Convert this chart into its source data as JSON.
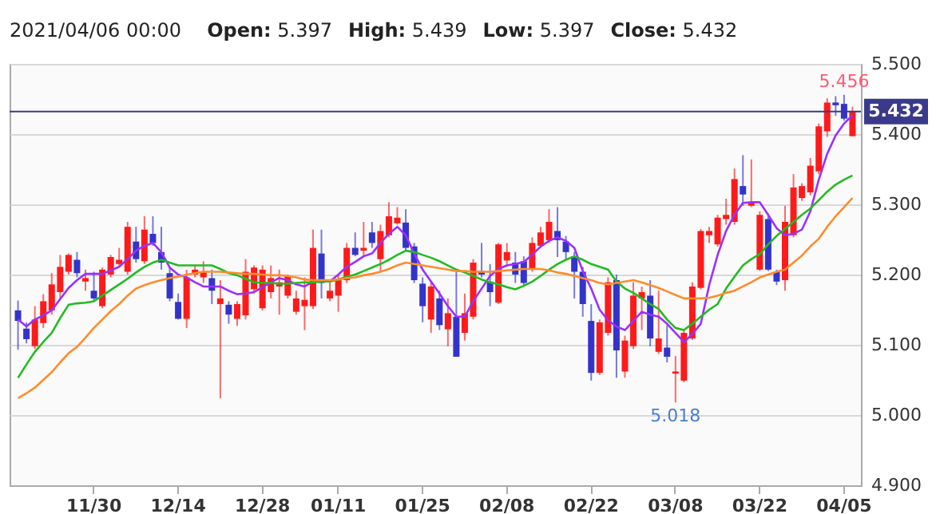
{
  "chart_data": {
    "type": "candlestick",
    "title": "2021/04/06 00:00",
    "annotations": [
      "Open: 5.397",
      "High: 5.439",
      "Low: 5.397",
      "Close: 5.432",
      {
        "text": "5.456",
        "x": "04/05",
        "y": 5.456
      },
      {
        "text": "5.018",
        "x": "03/08",
        "y": 5.018
      }
    ],
    "categories": [
      null,
      null,
      null,
      null,
      null,
      null,
      null,
      null,
      null,
      "11/30",
      null,
      null,
      null,
      null,
      null,
      null,
      null,
      null,
      null,
      "12/14",
      null,
      null,
      null,
      null,
      null,
      null,
      null,
      null,
      null,
      "12/28",
      null,
      null,
      null,
      null,
      null,
      null,
      null,
      null,
      "01/11",
      null,
      null,
      null,
      null,
      null,
      null,
      null,
      null,
      null,
      "01/25",
      null,
      null,
      null,
      null,
      null,
      null,
      null,
      null,
      null,
      "02/08",
      null,
      null,
      null,
      null,
      null,
      null,
      null,
      null,
      null,
      "02/22",
      null,
      null,
      null,
      null,
      null,
      null,
      null,
      null,
      null,
      "03/08",
      null,
      null,
      null,
      null,
      null,
      null,
      null,
      null,
      null,
      "03/22",
      null,
      null,
      null,
      null,
      null,
      null,
      null,
      null,
      null,
      "04/05",
      null
    ],
    "ohlc": [
      [
        5.149,
        5.163,
        5.093,
        5.134
      ],
      [
        5.123,
        5.132,
        5.102,
        5.108
      ],
      [
        5.098,
        5.155,
        5.094,
        5.136
      ],
      [
        5.131,
        5.172,
        5.124,
        5.162
      ],
      [
        5.149,
        5.202,
        5.143,
        5.186
      ],
      [
        5.175,
        5.228,
        5.166,
        5.211
      ],
      [
        5.204,
        5.23,
        5.2,
        5.228
      ],
      [
        5.221,
        5.232,
        5.196,
        5.202
      ],
      [
        5.19,
        5.207,
        5.177,
        5.195
      ],
      [
        5.177,
        5.204,
        5.162,
        5.166
      ],
      [
        5.155,
        5.21,
        5.152,
        5.207
      ],
      [
        5.2,
        5.228,
        5.196,
        5.225
      ],
      [
        5.215,
        5.238,
        5.213,
        5.221
      ],
      [
        5.204,
        5.275,
        5.2,
        5.268
      ],
      [
        5.247,
        5.268,
        5.217,
        5.222
      ],
      [
        5.219,
        5.283,
        5.215,
        5.264
      ],
      [
        5.258,
        5.283,
        5.241,
        5.245
      ],
      [
        5.232,
        5.268,
        5.207,
        5.217
      ],
      [
        5.202,
        5.211,
        5.162,
        5.166
      ],
      [
        5.161,
        5.173,
        5.136,
        5.137
      ],
      [
        5.137,
        5.207,
        5.124,
        5.196
      ],
      [
        5.2,
        5.213,
        5.196,
        5.207
      ],
      [
        5.196,
        5.219,
        5.188,
        5.204
      ],
      [
        5.195,
        5.207,
        5.158,
        5.177
      ],
      [
        5.158,
        5.192,
        5.024,
        5.166
      ],
      [
        5.157,
        5.162,
        5.13,
        5.143
      ],
      [
        5.137,
        5.162,
        5.127,
        5.158
      ],
      [
        5.142,
        5.222,
        5.136,
        5.204
      ],
      [
        5.179,
        5.213,
        5.173,
        5.21
      ],
      [
        5.152,
        5.213,
        5.149,
        5.207
      ],
      [
        5.175,
        5.213,
        5.166,
        5.195
      ],
      [
        5.183,
        5.207,
        5.143,
        5.189
      ],
      [
        5.17,
        5.2,
        5.166,
        5.198
      ],
      [
        5.147,
        5.177,
        5.143,
        5.166
      ],
      [
        5.155,
        5.196,
        5.121,
        5.164
      ],
      [
        5.155,
        5.264,
        5.151,
        5.238
      ],
      [
        5.23,
        5.264,
        5.166,
        5.188
      ],
      [
        5.166,
        5.192,
        5.162,
        5.177
      ],
      [
        5.17,
        5.2,
        5.147,
        5.192
      ],
      [
        5.192,
        5.245,
        5.188,
        5.238
      ],
      [
        5.238,
        5.26,
        5.226,
        5.228
      ],
      [
        5.234,
        5.275,
        5.226,
        5.238
      ],
      [
        5.26,
        5.275,
        5.238,
        5.245
      ],
      [
        5.222,
        5.271,
        5.204,
        5.262
      ],
      [
        5.256,
        5.303,
        5.253,
        5.283
      ],
      [
        5.273,
        5.296,
        5.271,
        5.281
      ],
      [
        5.274,
        5.293,
        5.234,
        5.238
      ],
      [
        5.24,
        5.245,
        5.188,
        5.192
      ],
      [
        5.187,
        5.196,
        5.132,
        5.155
      ],
      [
        5.136,
        5.19,
        5.117,
        5.183
      ],
      [
        5.166,
        5.177,
        5.121,
        5.128
      ],
      [
        5.122,
        5.166,
        5.098,
        5.145
      ],
      [
        5.14,
        5.204,
        5.083,
        5.083
      ],
      [
        5.117,
        5.173,
        5.106,
        5.145
      ],
      [
        5.14,
        5.222,
        5.136,
        5.217
      ],
      [
        5.205,
        5.245,
        5.196,
        5.2
      ],
      [
        5.19,
        5.215,
        5.155,
        5.175
      ],
      [
        5.16,
        5.245,
        5.158,
        5.243
      ],
      [
        5.22,
        5.245,
        5.211,
        5.232
      ],
      [
        5.217,
        5.232,
        5.188,
        5.2
      ],
      [
        5.219,
        5.226,
        5.185,
        5.188
      ],
      [
        5.207,
        5.253,
        5.204,
        5.245
      ],
      [
        5.241,
        5.268,
        5.238,
        5.26
      ],
      [
        5.249,
        5.293,
        5.245,
        5.275
      ],
      [
        5.262,
        5.296,
        5.225,
        5.249
      ],
      [
        5.247,
        5.255,
        5.222,
        5.232
      ],
      [
        5.226,
        5.232,
        5.166,
        5.204
      ],
      [
        5.204,
        5.211,
        5.14,
        5.158
      ],
      [
        5.134,
        5.158,
        5.049,
        5.06
      ],
      [
        5.06,
        5.136,
        5.057,
        5.132
      ],
      [
        5.117,
        5.196,
        5.113,
        5.189
      ],
      [
        5.192,
        5.2,
        5.053,
        5.092
      ],
      [
        5.062,
        5.113,
        5.053,
        5.106
      ],
      [
        5.098,
        5.189,
        5.094,
        5.17
      ],
      [
        5.166,
        5.183,
        5.121,
        5.175
      ],
      [
        5.17,
        5.192,
        5.098,
        5.109
      ],
      [
        5.09,
        5.177,
        5.087,
        5.109
      ],
      [
        5.096,
        5.128,
        5.075,
        5.083
      ],
      [
        5.059,
        5.084,
        5.018,
        5.062
      ],
      [
        5.049,
        5.121,
        5.047,
        5.117
      ],
      [
        5.109,
        5.189,
        5.107,
        5.183
      ],
      [
        5.181,
        5.265,
        5.179,
        5.262
      ],
      [
        5.256,
        5.268,
        5.245,
        5.262
      ],
      [
        5.243,
        5.285,
        5.24,
        5.281
      ],
      [
        5.279,
        5.308,
        5.271,
        5.285
      ],
      [
        5.275,
        5.351,
        5.271,
        5.336
      ],
      [
        5.326,
        5.37,
        5.298,
        5.314
      ],
      [
        5.298,
        5.364,
        5.296,
        5.303
      ],
      [
        5.207,
        5.29,
        5.205,
        5.285
      ],
      [
        5.279,
        5.287,
        5.205,
        5.207
      ],
      [
        5.204,
        5.207,
        5.185,
        5.19
      ],
      [
        5.192,
        5.298,
        5.177,
        5.275
      ],
      [
        5.256,
        5.343,
        5.253,
        5.324
      ],
      [
        5.309,
        5.33,
        5.305,
        5.326
      ],
      [
        5.317,
        5.366,
        5.313,
        5.355
      ],
      [
        5.347,
        5.415,
        5.343,
        5.411
      ],
      [
        5.404,
        5.451,
        5.396,
        5.445
      ],
      [
        5.445,
        5.454,
        5.426,
        5.441
      ],
      [
        5.443,
        5.456,
        5.419,
        5.422
      ],
      [
        5.397,
        5.439,
        5.397,
        5.432
      ]
    ],
    "colors": [
      "#3333cc",
      "#3333cc",
      "#ff1a1a",
      "#ff1a1a",
      "#ff1a1a",
      "#ff1a1a",
      "#ff1a1a",
      "#3333cc",
      "#ff1a1a",
      "#3333cc",
      "#ff1a1a",
      "#ff1a1a",
      "#ff1a1a",
      "#ff1a1a",
      "#3333cc",
      "#ff1a1a",
      "#3333cc",
      "#3333cc",
      "#3333cc",
      "#3333cc",
      "#ff1a1a",
      "#ff1a1a",
      "#ff1a1a",
      "#3333cc",
      "#ff1a1a",
      "#3333cc",
      "#ff1a1a",
      "#ff1a1a",
      "#ff1a1a",
      "#ff1a1a",
      "#ff1a1a",
      "#ff1a1a",
      "#ff1a1a",
      "#ff1a1a",
      "#ff1a1a",
      "#ff1a1a",
      "#3333cc",
      "#ff1a1a",
      "#ff1a1a",
      "#ff1a1a",
      "#3333cc",
      "#ff1a1a",
      "#3333cc",
      "#ff1a1a",
      "#ff1a1a",
      "#ff1a1a",
      "#3333cc",
      "#3333cc",
      "#3333cc",
      "#ff1a1a",
      "#3333cc",
      "#ff1a1a",
      "#3333cc",
      "#ff1a1a",
      "#ff1a1a",
      "#3333cc",
      "#3333cc",
      "#ff1a1a",
      "#ff1a1a",
      "#3333cc",
      "#3333cc",
      "#ff1a1a",
      "#ff1a1a",
      "#ff1a1a",
      "#3333cc",
      "#3333cc",
      "#3333cc",
      "#3333cc",
      "#3333cc",
      "#ff1a1a",
      "#ff1a1a",
      "#3333cc",
      "#ff1a1a",
      "#ff1a1a",
      "#ff1a1a",
      "#3333cc",
      "#ff1a1a",
      "#3333cc",
      "#ff1a1a",
      "#ff1a1a",
      "#ff1a1a",
      "#ff1a1a",
      "#ff1a1a",
      "#ff1a1a",
      "#ff1a1a",
      "#ff1a1a",
      "#3333cc",
      "#ff1a1a",
      "#ff1a1a",
      "#3333cc",
      "#3333cc",
      "#ff1a1a",
      "#ff1a1a",
      "#ff1a1a",
      "#ff1a1a",
      "#ff1a1a",
      "#ff1a1a",
      "#3333cc",
      "#3333cc",
      "#ff1a1a"
    ],
    "series": [
      {
        "type": "line",
        "color": "#9b30ff",
        "values": [
          5.136,
          5.126,
          5.136,
          5.142,
          5.149,
          5.165,
          5.181,
          5.192,
          5.201,
          5.201,
          5.201,
          5.206,
          5.211,
          5.222,
          5.234,
          5.241,
          5.245,
          5.232,
          5.21,
          5.2,
          5.196,
          5.189,
          5.183,
          5.183,
          5.183,
          5.177,
          5.172,
          5.173,
          5.175,
          5.182,
          5.189,
          5.195,
          5.192,
          5.186,
          5.183,
          5.19,
          5.192,
          5.19,
          5.2,
          5.211,
          5.218,
          5.226,
          5.23,
          5.245,
          5.258,
          5.268,
          5.256,
          5.23,
          5.207,
          5.19,
          5.173,
          5.155,
          5.14,
          5.14,
          5.162,
          5.18,
          5.198,
          5.208,
          5.213,
          5.215,
          5.218,
          5.228,
          5.24,
          5.248,
          5.253,
          5.248,
          5.238,
          5.205,
          5.18,
          5.15,
          5.135,
          5.126,
          5.121,
          5.134,
          5.147,
          5.143,
          5.14,
          5.13,
          5.117,
          5.104,
          5.115,
          5.13,
          5.185,
          5.228,
          5.262,
          5.285,
          5.302,
          5.303,
          5.303,
          5.285,
          5.266,
          5.256,
          5.258,
          5.264,
          5.29,
          5.335,
          5.372,
          5.398,
          5.415,
          5.427
        ]
      },
      {
        "type": "line",
        "color": "#22bb22",
        "values": [
          5.053,
          5.072,
          5.09,
          5.104,
          5.117,
          5.138,
          5.157,
          5.159,
          5.16,
          5.162,
          5.17,
          5.178,
          5.186,
          5.194,
          5.203,
          5.211,
          5.217,
          5.221,
          5.217,
          5.213,
          5.213,
          5.213,
          5.213,
          5.213,
          5.208,
          5.202,
          5.199,
          5.194,
          5.189,
          5.188,
          5.188,
          5.187,
          5.187,
          5.188,
          5.189,
          5.189,
          5.19,
          5.19,
          5.193,
          5.197,
          5.2,
          5.205,
          5.21,
          5.215,
          5.221,
          5.228,
          5.234,
          5.232,
          5.228,
          5.224,
          5.219,
          5.213,
          5.207,
          5.203,
          5.198,
          5.193,
          5.189,
          5.186,
          5.182,
          5.179,
          5.184,
          5.19,
          5.198,
          5.207,
          5.215,
          5.221,
          5.226,
          5.221,
          5.215,
          5.211,
          5.207,
          5.19,
          5.18,
          5.174,
          5.166,
          5.158,
          5.151,
          5.136,
          5.124,
          5.121,
          5.13,
          5.14,
          5.15,
          5.158,
          5.18,
          5.197,
          5.213,
          5.222,
          5.229,
          5.243,
          5.255,
          5.265,
          5.275,
          5.285,
          5.294,
          5.306,
          5.318,
          5.328,
          5.335,
          5.341
        ]
      },
      {
        "type": "line",
        "color": "#ff8c2a",
        "values": [
          5.024,
          5.031,
          5.039,
          5.05,
          5.061,
          5.075,
          5.088,
          5.097,
          5.11,
          5.124,
          5.136,
          5.148,
          5.158,
          5.17,
          5.18,
          5.185,
          5.189,
          5.192,
          5.195,
          5.197,
          5.2,
          5.202,
          5.204,
          5.204,
          5.204,
          5.203,
          5.202,
          5.201,
          5.201,
          5.2,
          5.199,
          5.199,
          5.198,
          5.196,
          5.193,
          5.192,
          5.192,
          5.192,
          5.193,
          5.195,
          5.196,
          5.199,
          5.201,
          5.204,
          5.208,
          5.213,
          5.217,
          5.215,
          5.213,
          5.211,
          5.209,
          5.207,
          5.205,
          5.205,
          5.204,
          5.204,
          5.204,
          5.205,
          5.206,
          5.207,
          5.208,
          5.208,
          5.208,
          5.206,
          5.203,
          5.201,
          5.198,
          5.195,
          5.192,
          5.188,
          5.186,
          5.188,
          5.19,
          5.192,
          5.189,
          5.185,
          5.181,
          5.176,
          5.171,
          5.166,
          5.166,
          5.166,
          5.167,
          5.17,
          5.174,
          5.177,
          5.183,
          5.189,
          5.196,
          5.2,
          5.204,
          5.207,
          5.217,
          5.227,
          5.24,
          5.251,
          5.268,
          5.283,
          5.296,
          5.309
        ]
      }
    ],
    "ylim": [
      4.9,
      5.5
    ],
    "yticks": [
      {
        "value": 4.9,
        "label": "4.900"
      },
      {
        "value": 5.0,
        "label": "5.000"
      },
      {
        "value": 5.1,
        "label": "5.100"
      },
      {
        "value": 5.2,
        "label": "5.200"
      },
      {
        "value": 5.3,
        "label": "5.300"
      },
      {
        "value": 5.4,
        "label": "5.400"
      },
      {
        "value": 5.5,
        "label": "5.500"
      }
    ],
    "ref_lines": [
      {
        "axis": "y",
        "value": 5.432,
        "label": "5.432",
        "color": "#3a3a8c"
      }
    ],
    "grid": "y"
  }
}
